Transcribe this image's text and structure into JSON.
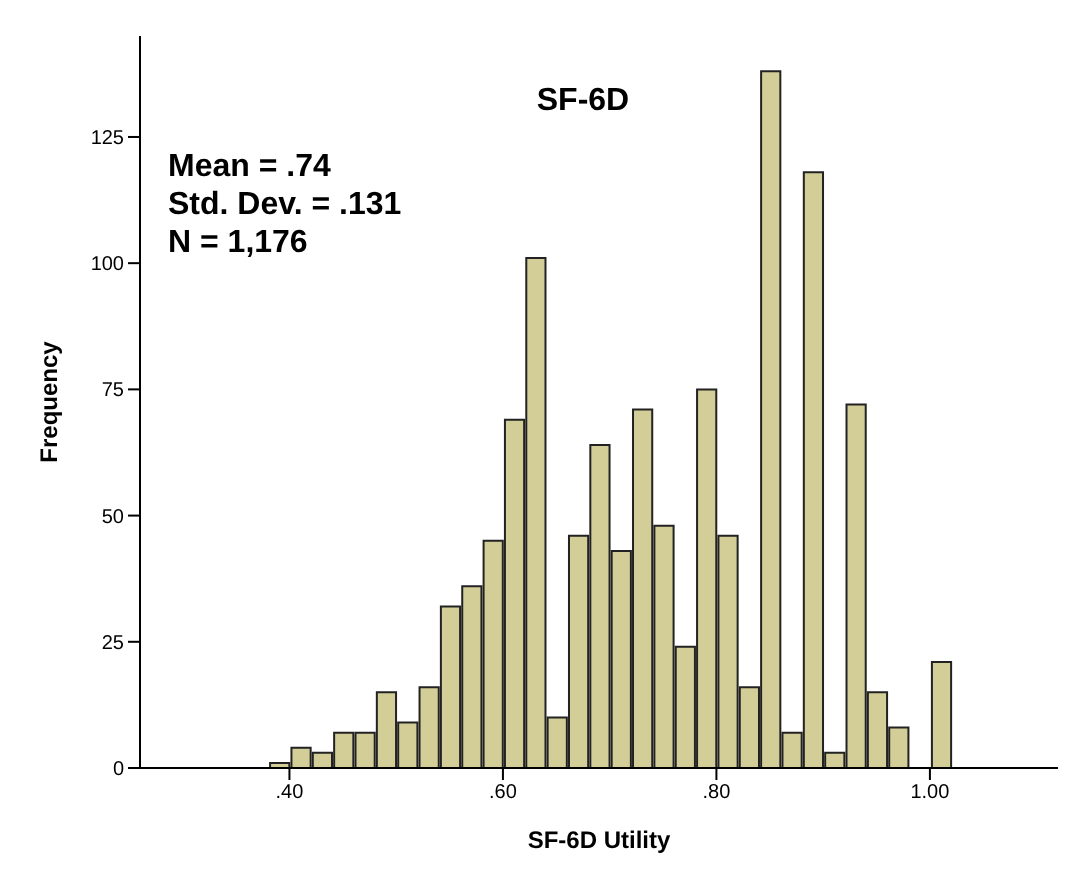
{
  "chart_data": {
    "type": "histogram",
    "title": "SF-6D",
    "xlabel": "SF-6D Utility",
    "ylabel": "Frequency",
    "annotations": [
      "Mean = .74",
      "Std. Dev. = .131",
      "N = 1,176"
    ],
    "bins": [
      0.38,
      0.4,
      0.42,
      0.44,
      0.46,
      0.48,
      0.5,
      0.52,
      0.54,
      0.56,
      0.58,
      0.6,
      0.62,
      0.64,
      0.66,
      0.68,
      0.7,
      0.72,
      0.74,
      0.76,
      0.78,
      0.8,
      0.82,
      0.84,
      0.86,
      0.88,
      0.9,
      0.92,
      0.94,
      0.96,
      0.98,
      1.0,
      1.02
    ],
    "values": [
      1,
      4,
      3,
      7,
      7,
      15,
      9,
      16,
      32,
      36,
      45,
      69,
      101,
      10,
      46,
      64,
      43,
      71,
      48,
      24,
      75,
      46,
      16,
      138,
      7,
      118,
      3,
      72,
      15,
      8,
      0,
      21
    ],
    "color": "#d3ce98",
    "xlim": [
      0.26,
      1.12
    ],
    "xticks": [
      {
        "value": 0.4,
        "label": ".40"
      },
      {
        "value": 0.6,
        "label": ".60"
      },
      {
        "value": 0.8,
        "label": ".80"
      },
      {
        "value": 1.0,
        "label": "1.00"
      }
    ],
    "ylim": [
      0,
      145
    ],
    "yticks": [
      0,
      25,
      50,
      75,
      100,
      125
    ]
  }
}
